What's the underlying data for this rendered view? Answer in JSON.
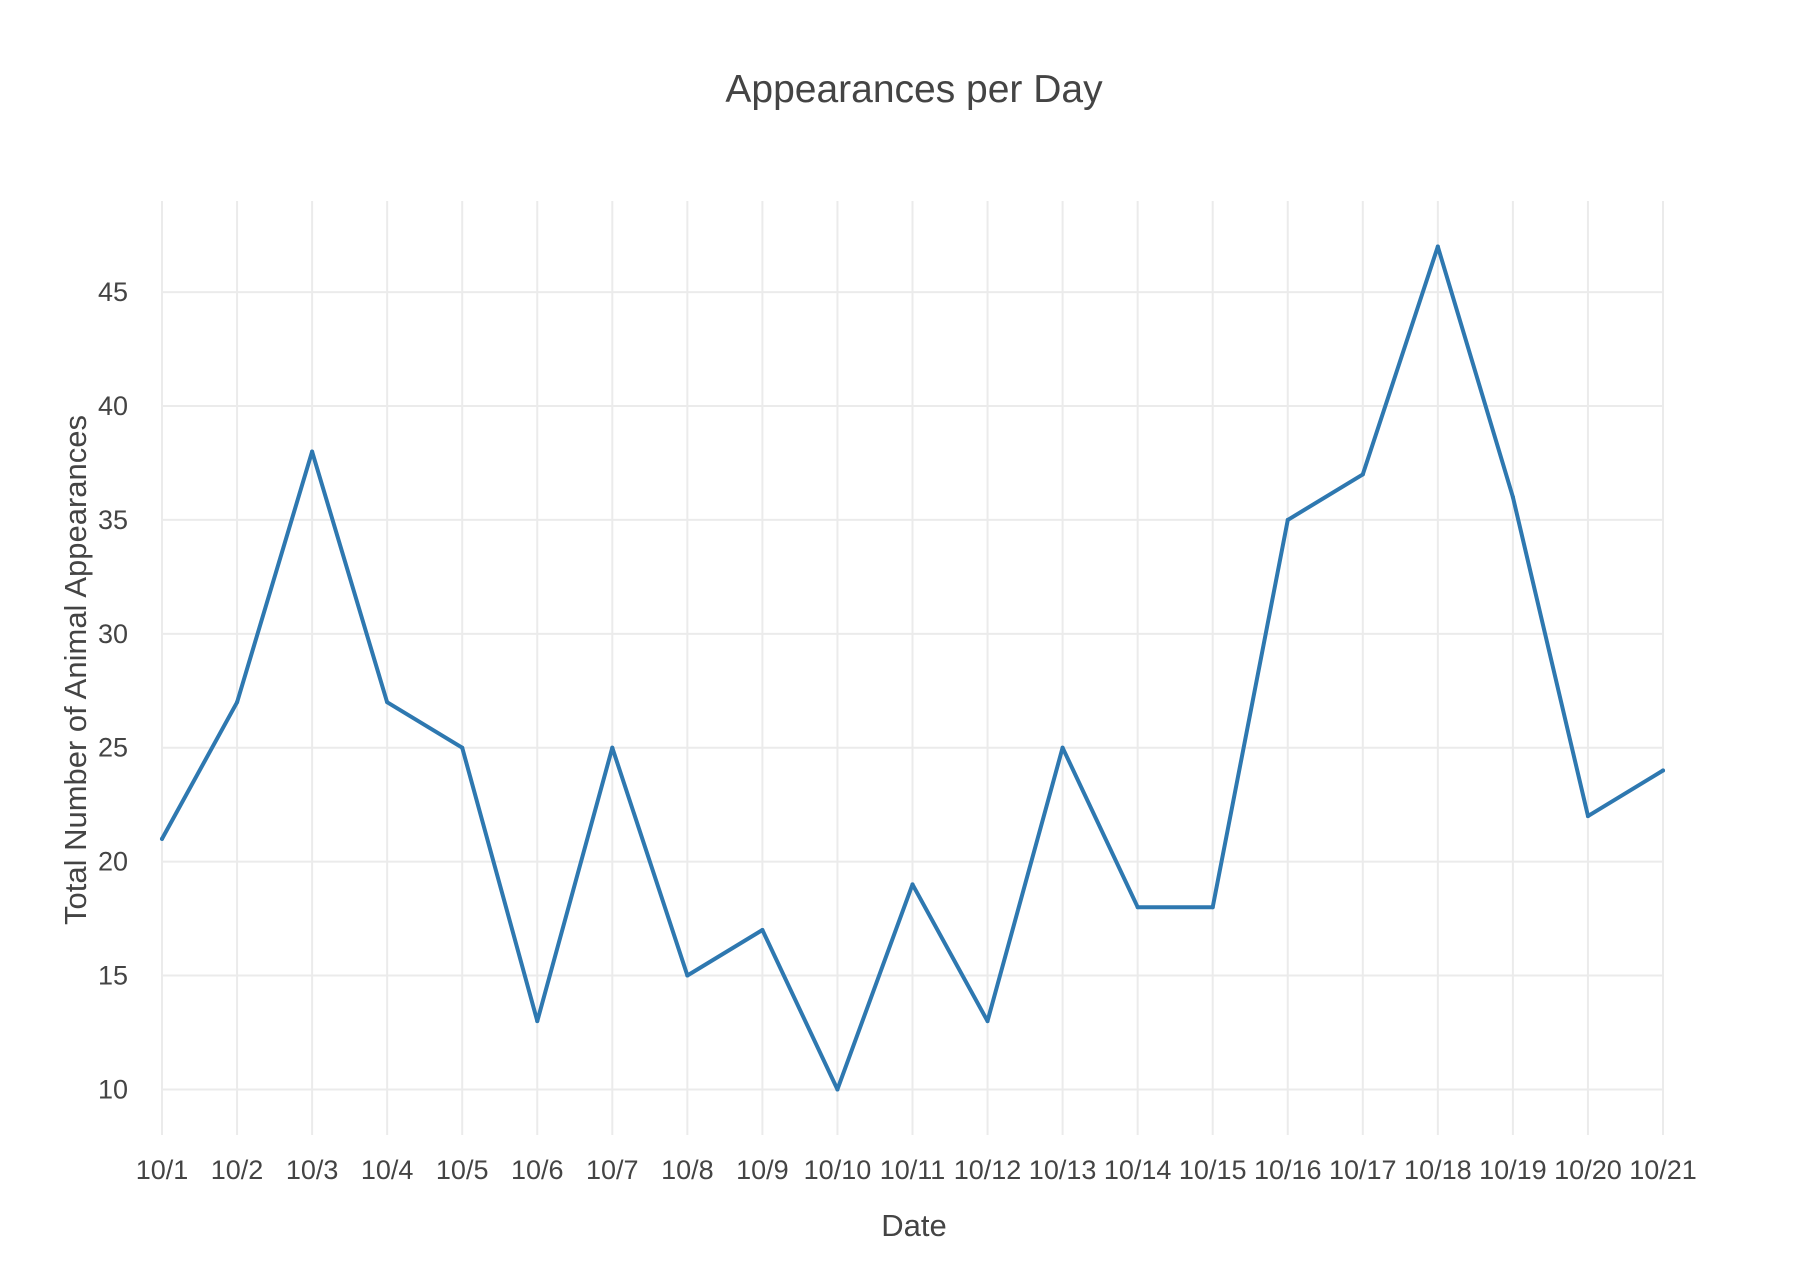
{
  "chart_data": {
    "type": "line",
    "title": "Appearances per Day",
    "xlabel": "Date",
    "ylabel": "Total Number of Animal Appearances",
    "categories": [
      "10/1",
      "10/2",
      "10/3",
      "10/4",
      "10/5",
      "10/6",
      "10/7",
      "10/8",
      "10/9",
      "10/10",
      "10/11",
      "10/12",
      "10/13",
      "10/14",
      "10/15",
      "10/16",
      "10/17",
      "10/18",
      "10/19",
      "10/20",
      "10/21"
    ],
    "series": [
      {
        "values": [
          21,
          27,
          38,
          27,
          25,
          13,
          25,
          15,
          17,
          10,
          19,
          13,
          25,
          18,
          18,
          35,
          37,
          47,
          36,
          22,
          24
        ],
        "color": "#2e78b0"
      }
    ],
    "ylim": [
      8,
      49
    ],
    "yticks": [
      10,
      15,
      20,
      25,
      30,
      35,
      40,
      45
    ],
    "grid": true,
    "legend": "none"
  }
}
